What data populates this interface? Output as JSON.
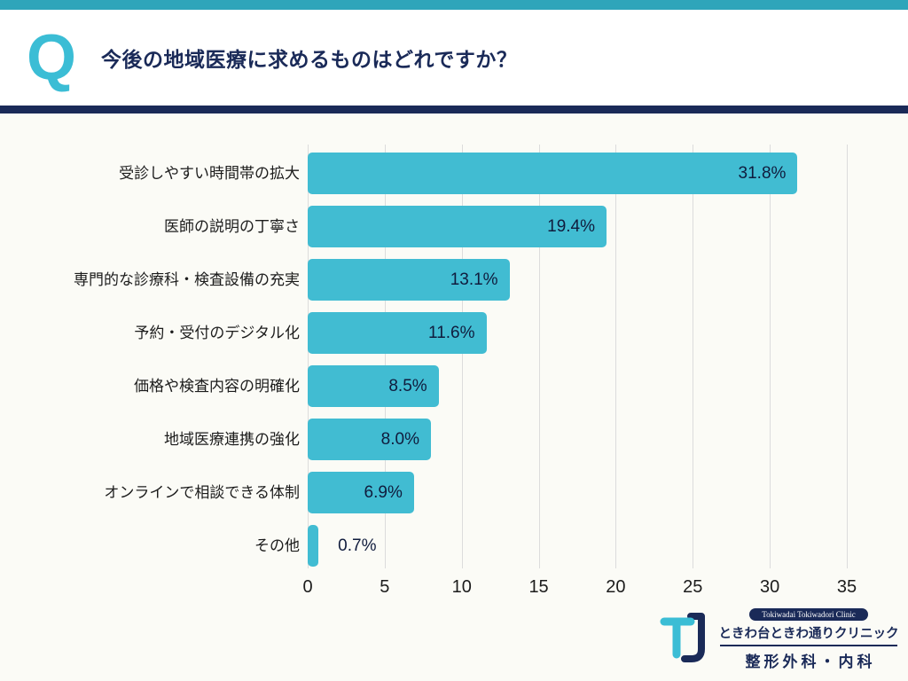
{
  "colors": {
    "teal": "#3BBDD5",
    "teal_dark": "#2FA5BA",
    "navy": "#1A2A58",
    "grid": "#DCDCDC",
    "bg": "#FBFBF6",
    "text": "#1C1C1C"
  },
  "header": {
    "q_mark": "Q",
    "title": "今後の地域医療に求めるものはどれですか？"
  },
  "chart_data": {
    "type": "bar",
    "orientation": "horizontal",
    "title": "今後の地域医療に求めるものはどれですか？",
    "categories": [
      "受診しやすい時間帯の拡大",
      "医師の説明の丁寧さ",
      "専門的な診療科・検査設備の充実",
      "予約・受付のデジタル化",
      "価格や検査内容の明確化",
      "地域医療連携の強化",
      "オンラインで相談できる体制",
      "その他"
    ],
    "values": [
      31.8,
      19.4,
      13.1,
      11.6,
      8.5,
      8.0,
      6.9,
      0.7
    ],
    "labels": [
      "31.8%",
      "19.4%",
      "13.1%",
      "11.6%",
      "8.5%",
      "8.0%",
      "6.9%",
      "0.7%"
    ],
    "xlim": [
      0,
      35
    ],
    "xticks": [
      0,
      5,
      10,
      15,
      20,
      25,
      30,
      35
    ],
    "xlabel": "",
    "ylabel": "",
    "grid": true,
    "legend": false,
    "bar_color": "#41BCD2"
  },
  "footer": {
    "clinic_en": "Tokiwadai Tokiwadori Clinic",
    "clinic_ja": "ときわ台ときわ通りクリニック",
    "department": "整形外科・内科"
  }
}
